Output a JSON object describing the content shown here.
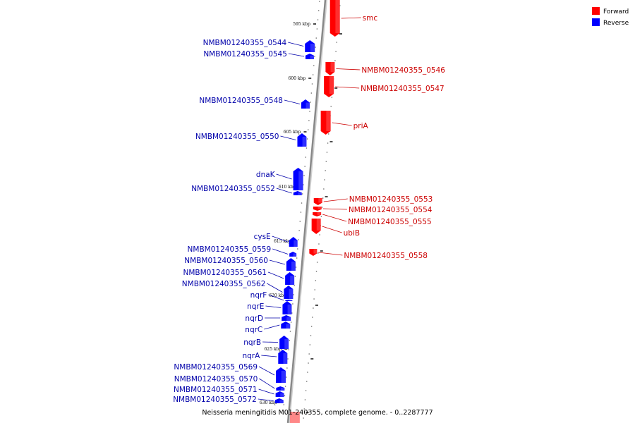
{
  "colors": {
    "forward": "#ff0000",
    "reverse": "#0000ff",
    "forward_text": "#cc0000",
    "reverse_text": "#0000aa",
    "backbone": "#888888"
  },
  "legend": [
    {
      "label": "Forward",
      "color": "#ff0000"
    },
    {
      "label": "Reverse",
      "color": "#0000ff"
    }
  ],
  "caption": "Neisseria meningitidis M01-240355, complete genome. - 0..2287777",
  "ticks": [
    "595 kbp",
    "600 kbp",
    "605 kbp",
    "610 kbp",
    "615 kbp",
    "620 kbp",
    "625 kbp",
    "630 kbp"
  ],
  "forward_genes": [
    "smc",
    "NMBM01240355_0546",
    "NMBM01240355_0547",
    "priA",
    "NMBM01240355_0553",
    "NMBM01240355_0554",
    "NMBM01240355_0555",
    "ubiB",
    "NMBM01240355_0558"
  ],
  "reverse_genes": [
    "NMBM01240355_0544",
    "NMBM01240355_0545",
    "NMBM01240355_0548",
    "NMBM01240355_0550",
    "dnaK",
    "NMBM01240355_0552",
    "cysE",
    "NMBM01240355_0559",
    "NMBM01240355_0560",
    "NMBM01240355_0561",
    "NMBM01240355_0562",
    "nqrF",
    "nqrE",
    "nqrD",
    "nqrC",
    "nqrB",
    "nqrA",
    "NMBM01240355_0569",
    "NMBM01240355_0570",
    "NMBM01240355_0571",
    "NMBM01240355_0572"
  ]
}
